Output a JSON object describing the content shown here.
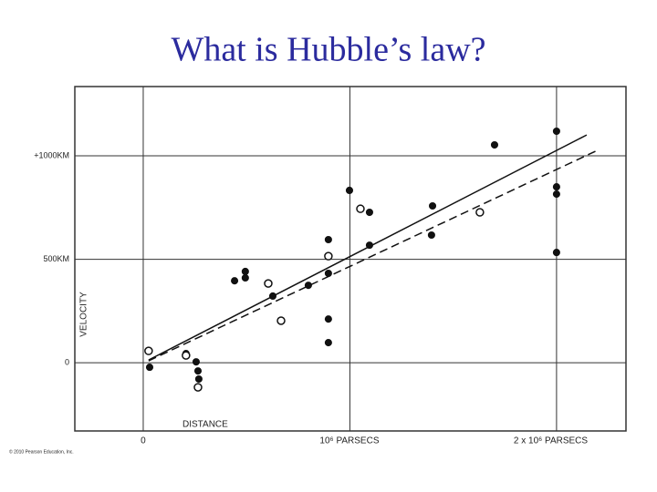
{
  "title": "What is Hubble’s law?",
  "chart_data": {
    "type": "scatter",
    "xlabel": "DISTANCE",
    "ylabel": "VELOCITY",
    "xlim": [
      -0.331,
      2.336
    ],
    "ylim": [
      -330,
      1335
    ],
    "xticks": [
      0,
      {
        "value": 1,
        "label": "10⁶ PARSECS"
      },
      {
        "value": 2,
        "label": "2 x 10⁶ PARSECS"
      }
    ],
    "yticks": [
      0,
      {
        "value": 500,
        "label": "500KM"
      },
      {
        "value": 1000,
        "label": "+1000KM"
      }
    ],
    "grid": true,
    "series": [
      {
        "marker": "filled",
        "color": "#111111",
        "x": [
          0.031,
          0.207,
          0.256,
          0.265,
          0.269,
          0.442,
          0.494,
          0.494,
          0.627,
          0.799,
          0.896,
          0.896,
          0.896,
          0.896,
          0.998,
          1.095,
          1.095,
          1.395,
          1.4,
          1.7,
          2.0,
          2.0,
          2.0,
          2.0
        ],
        "values": [
          -22,
          44,
          4,
          -40,
          -79,
          396,
          441,
          410,
          322,
          374,
          595,
          432,
          211,
          97,
          833,
          727,
          568,
          617,
          758,
          1053,
          1119,
          850,
          815,
          533
        ]
      },
      {
        "marker": "open",
        "color": "#111111",
        "x": [
          0.026,
          0.207,
          0.265,
          0.605,
          0.667,
          0.896,
          1.051,
          1.629
        ],
        "values": [
          57,
          35,
          -119,
          383,
          203,
          515,
          744,
          727
        ]
      }
    ],
    "fit_lines": [
      {
        "dash": false,
        "color": "#111111",
        "x": [
          0.026,
          2.146
        ],
        "values": [
          13,
          1101
        ]
      },
      {
        "dash": true,
        "color": "#111111",
        "x": [
          0.026,
          2.207
        ],
        "values": [
          9,
          1031
        ]
      }
    ],
    "credit": "© 2010 Pearson Education, Inc."
  }
}
